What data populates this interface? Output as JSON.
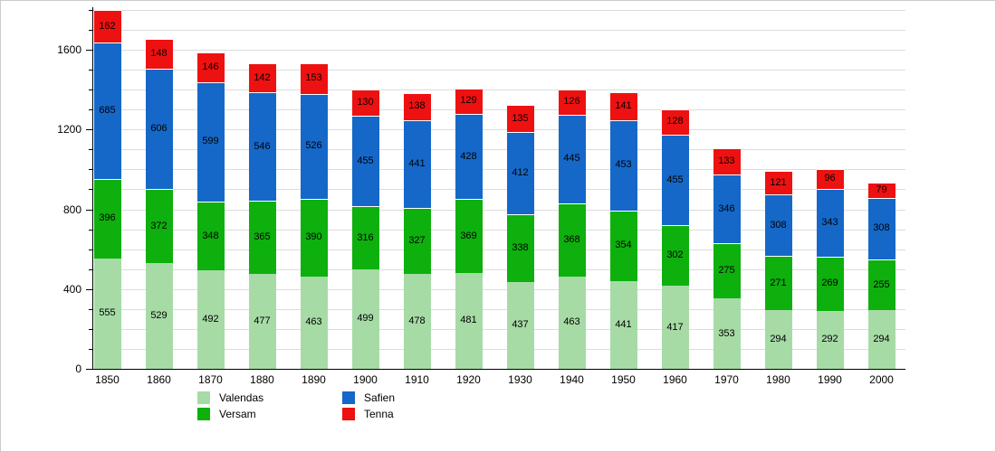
{
  "chart_data": {
    "type": "bar",
    "stacked": true,
    "title": "",
    "xlabel": "",
    "ylabel": "",
    "grid": true,
    "legend_position": "bottom",
    "ylim": [
      0,
      1800
    ],
    "y_major_ticks": [
      "0",
      "400",
      "800",
      "1200",
      "1600"
    ],
    "y_major_values": [
      0,
      400,
      800,
      1200,
      1600
    ],
    "categories": [
      "1850",
      "1860",
      "1870",
      "1880",
      "1890",
      "1900",
      "1910",
      "1920",
      "1930",
      "1940",
      "1950",
      "1960",
      "1970",
      "1980",
      "1990",
      "2000"
    ],
    "series": [
      {
        "name": "Valendas",
        "color": "#a6dba6",
        "values": [
          555,
          529,
          492,
          477,
          463,
          499,
          478,
          481,
          437,
          463,
          441,
          417,
          353,
          294,
          292,
          294
        ]
      },
      {
        "name": "Versam",
        "color": "#0db00d",
        "values": [
          396,
          372,
          348,
          365,
          390,
          316,
          327,
          369,
          338,
          368,
          354,
          302,
          275,
          271,
          269,
          255
        ]
      },
      {
        "name": "Safien",
        "color": "#1568c8",
        "values": [
          685,
          606,
          599,
          546,
          526,
          455,
          441,
          428,
          412,
          445,
          453,
          455,
          346,
          308,
          343,
          308
        ]
      },
      {
        "name": "Tenna",
        "color": "#ee1111",
        "values": [
          162,
          148,
          146,
          142,
          153,
          130,
          138,
          129,
          135,
          126,
          141,
          128,
          133,
          121,
          96,
          79
        ]
      }
    ],
    "colors": {
      "grid": "#dcdcdc",
      "axis": "#000000",
      "background": "#ffffff",
      "label_text": "#000000"
    }
  }
}
